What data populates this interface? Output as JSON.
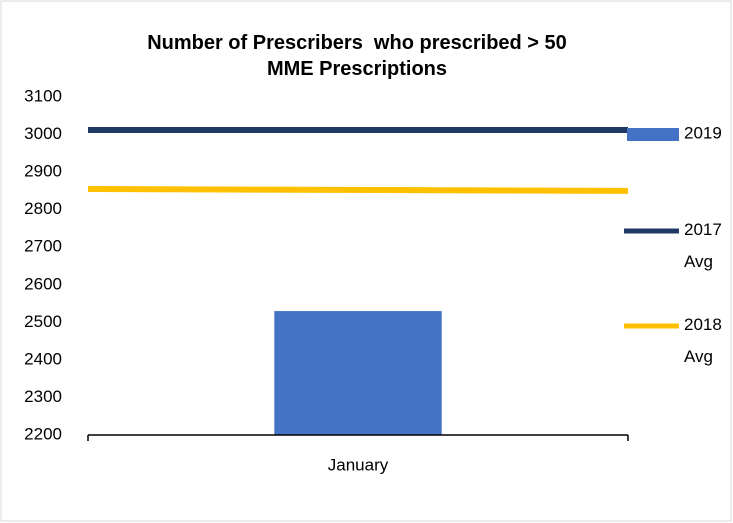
{
  "chart_data": [
    {
      "type": "bar",
      "title": "Number of Prescribers  who prescribed > 50 MME Prescriptions",
      "categories": [
        "January"
      ],
      "series": [
        {
          "name": "2019",
          "color": "#4472c4",
          "values": [
            2530
          ]
        }
      ],
      "ylim": [
        2200,
        3100
      ],
      "yticks": [
        2200,
        2300,
        2400,
        2500,
        2600,
        2700,
        2800,
        2900,
        3000,
        3100
      ]
    },
    {
      "type": "line",
      "categories": [
        null,
        null
      ],
      "series": [
        {
          "name": "2017 Avg",
          "color": "#203864",
          "values": [
            3012,
            3012
          ]
        },
        {
          "name": "2018 Avg",
          "color": "#ffc000",
          "values": [
            2855,
            2850
          ]
        }
      ]
    }
  ]
}
